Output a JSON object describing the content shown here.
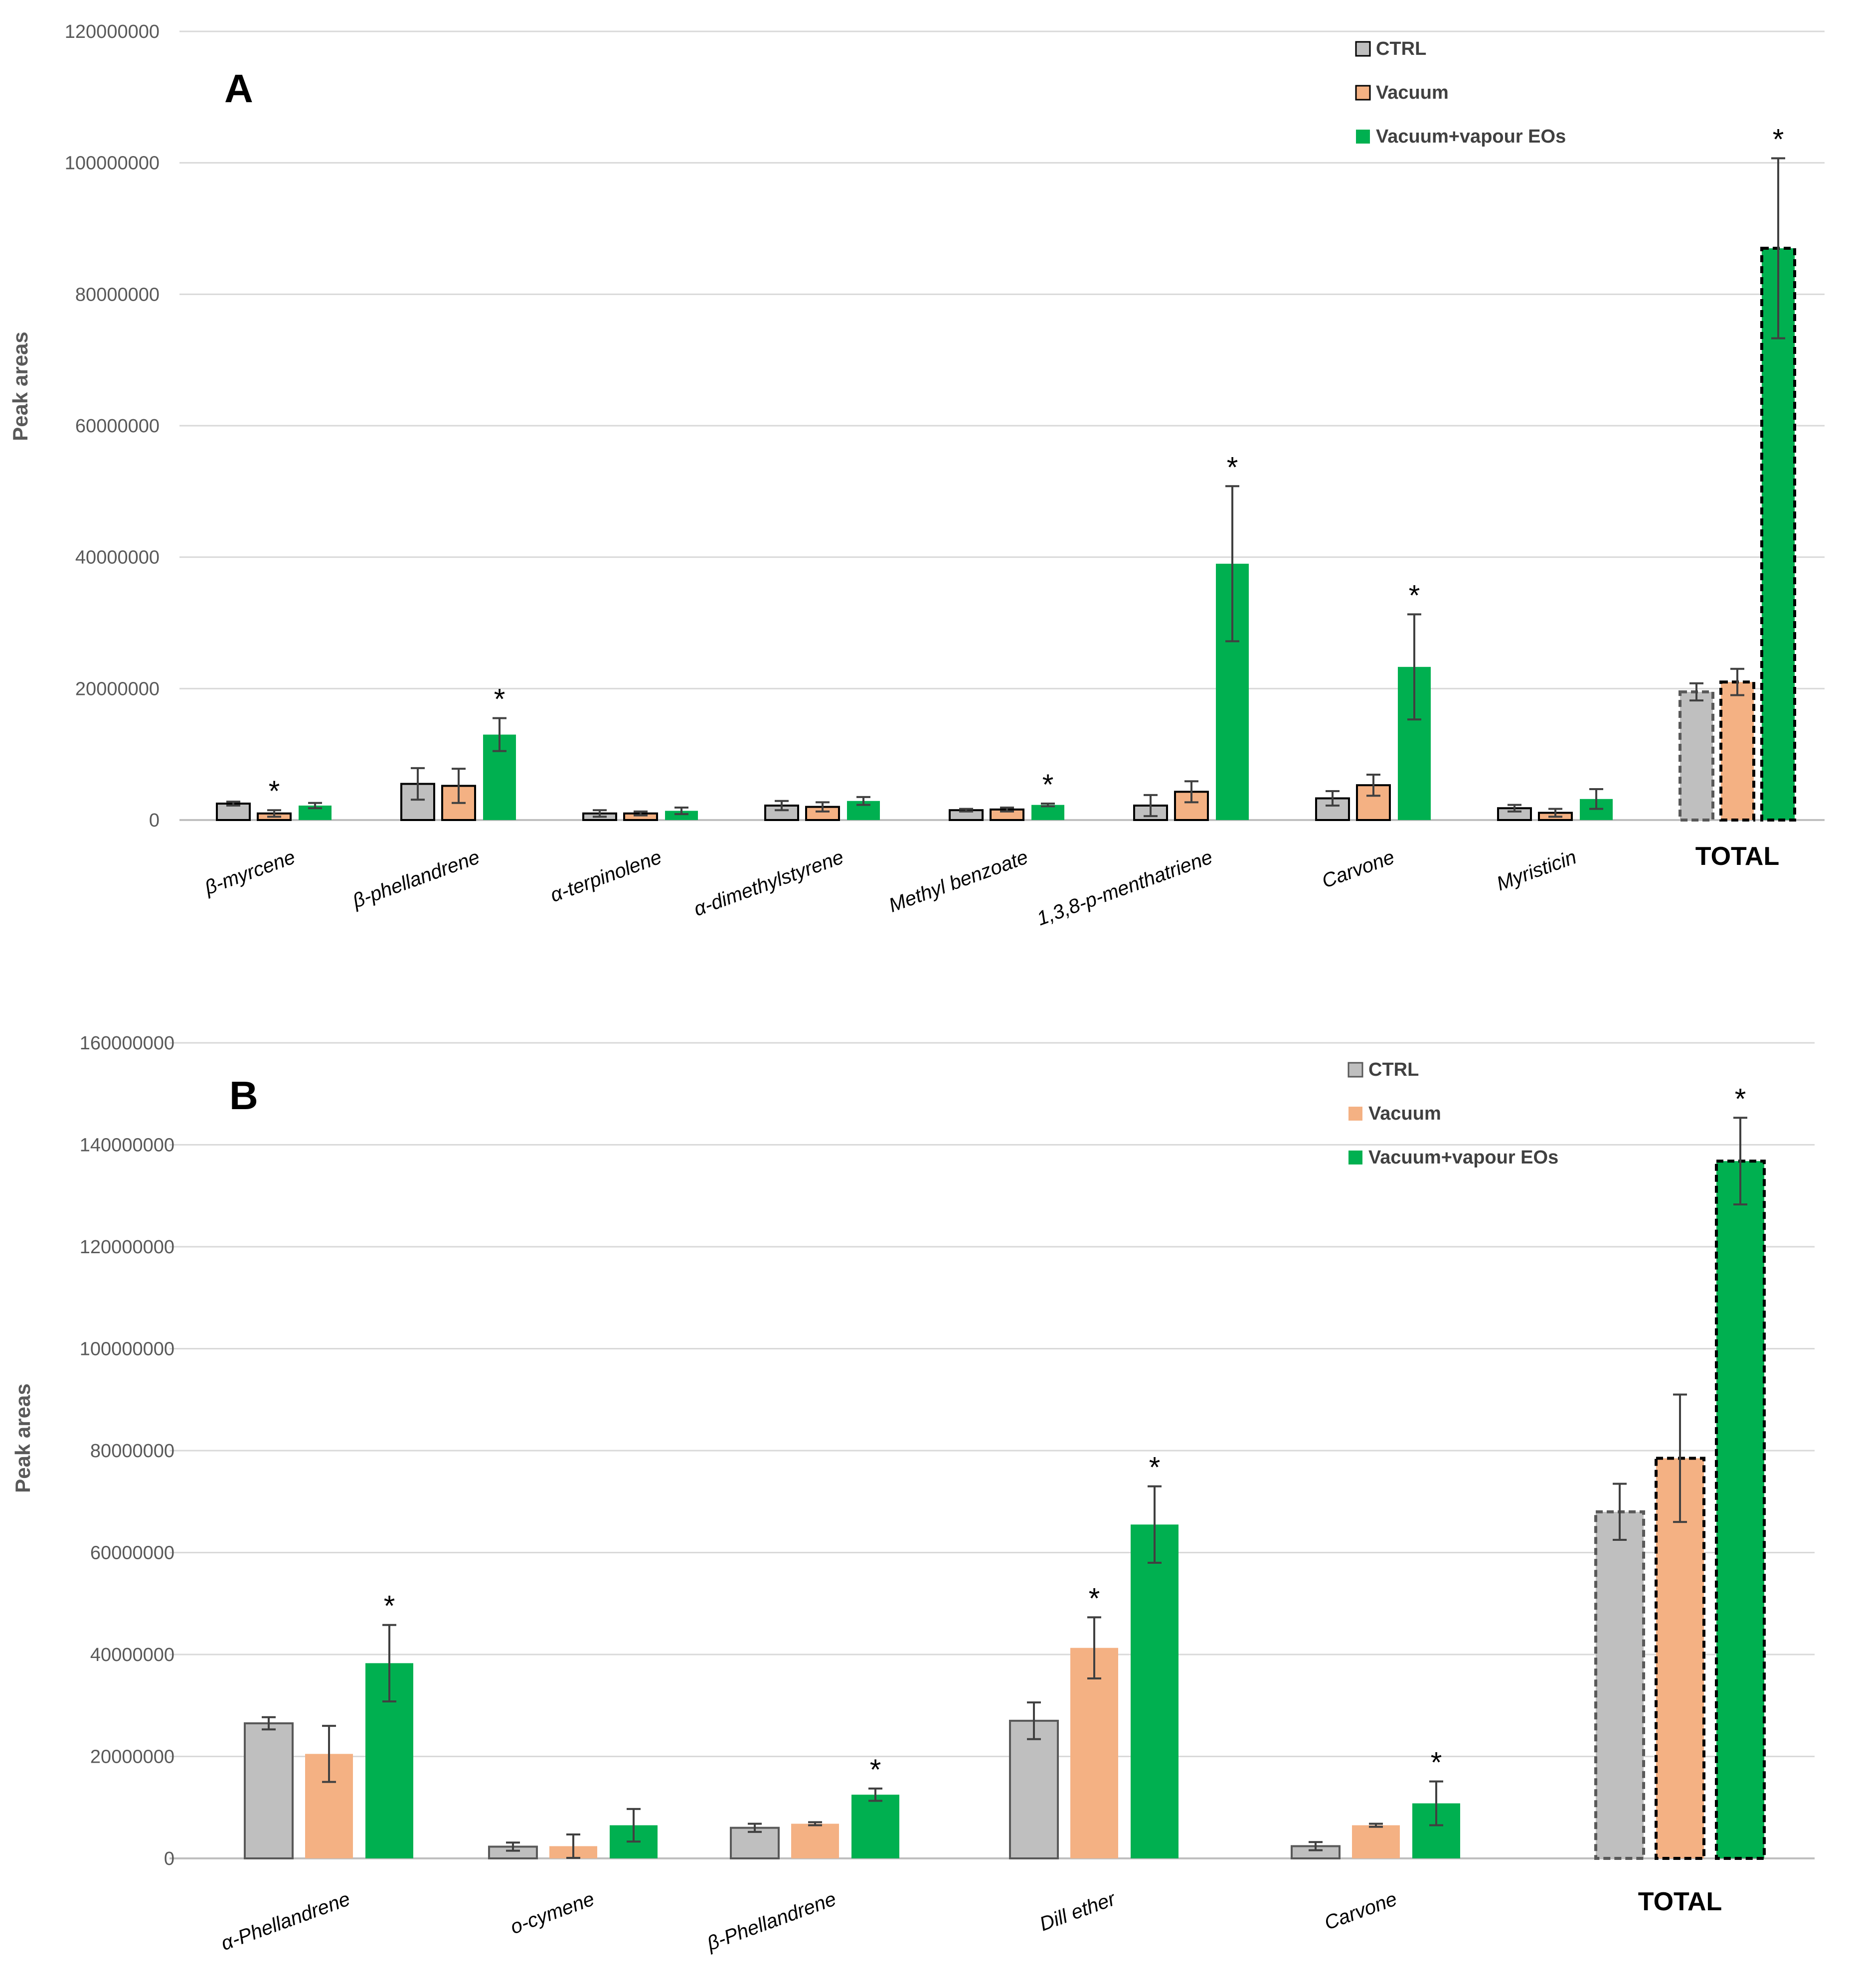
{
  "chart_data": [
    {
      "type": "bar",
      "panel_label": "A",
      "ylabel": "Peak areas",
      "ylim": [
        0,
        120000000
      ],
      "yticks": [
        "0",
        "20000000",
        "40000000",
        "60000000",
        "80000000",
        "100000000",
        "120000000"
      ],
      "categories": [
        "β-myrcene",
        "β-phellandrene",
        "α-terpinolene",
        "α-dimethylstyrene",
        "Methyl benzoate",
        "1,3,8-p-menthatriene",
        "Carvone",
        "Myristicin",
        "TOTAL"
      ],
      "series": [
        {
          "name": "CTRL",
          "color": "#bfbfbf",
          "values": [
            2500000,
            5500000,
            1000000,
            2200000,
            1500000,
            2200000,
            3300000,
            1800000,
            19500000
          ],
          "errors": [
            300000,
            2400000,
            500000,
            700000,
            200000,
            1600000,
            1100000,
            500000,
            1300000
          ]
        },
        {
          "name": "Vacuum",
          "color": "#f4b183",
          "values": [
            1000000,
            5200000,
            1000000,
            2000000,
            1600000,
            4300000,
            5300000,
            1100000,
            21000000
          ],
          "errors": [
            500000,
            2600000,
            300000,
            700000,
            300000,
            1600000,
            1600000,
            600000,
            2000000
          ]
        },
        {
          "name": "Vacuum+vapour EOs",
          "color": "#00b050",
          "values": [
            2200000,
            13000000,
            1400000,
            2900000,
            2300000,
            39000000,
            23300000,
            3200000,
            87000000
          ],
          "errors": [
            400000,
            2500000,
            500000,
            600000,
            200000,
            11800000,
            8000000,
            1500000,
            13700000
          ]
        }
      ],
      "significance": [
        {
          "category": "β-myrcene",
          "series": "Vacuum",
          "label": "*"
        },
        {
          "category": "β-phellandrene",
          "series": "Vacuum+vapour EOs",
          "label": "*"
        },
        {
          "category": "Methyl benzoate",
          "series": "Vacuum+vapour EOs",
          "label": "*"
        },
        {
          "category": "1,3,8-p-menthatriene",
          "series": "Vacuum+vapour EOs",
          "label": "*"
        },
        {
          "category": "Carvone",
          "series": "Vacuum+vapour EOs",
          "label": "*"
        },
        {
          "category": "TOTAL",
          "series": "Vacuum+vapour EOs",
          "label": "*"
        }
      ],
      "legend": [
        "CTRL",
        "Vacuum",
        "Vacuum+vapour EOs"
      ],
      "legend_position": "top-right",
      "grid": true
    },
    {
      "type": "bar",
      "panel_label": "B",
      "ylabel": "Peak areas",
      "ylim": [
        0,
        160000000
      ],
      "yticks": [
        "0",
        "20000000",
        "40000000",
        "60000000",
        "80000000",
        "100000000",
        "120000000",
        "140000000",
        "160000000"
      ],
      "categories": [
        "α-Phellandrene",
        "o-cymene",
        "β-Phellandrene",
        "Dill ether",
        "Carvone",
        "TOTAL"
      ],
      "series": [
        {
          "name": "CTRL",
          "color": "#bfbfbf",
          "values": [
            26500000,
            2300000,
            6000000,
            27000000,
            2400000,
            68000000
          ],
          "errors": [
            1200000,
            800000,
            800000,
            3600000,
            800000,
            5500000
          ]
        },
        {
          "name": "Vacuum",
          "color": "#f4b183",
          "values": [
            20500000,
            2400000,
            6800000,
            41300000,
            6500000,
            78500000
          ],
          "errors": [
            5500000,
            2300000,
            300000,
            6000000,
            300000,
            12500000
          ]
        },
        {
          "name": "Vacuum+vapour EOs",
          "color": "#00b050",
          "values": [
            38300000,
            6500000,
            12500000,
            65500000,
            10800000,
            136800000
          ],
          "errors": [
            7500000,
            3200000,
            1200000,
            7500000,
            4300000,
            8500000
          ]
        }
      ],
      "significance": [
        {
          "category": "α-Phellandrene",
          "series": "Vacuum+vapour EOs",
          "label": "*"
        },
        {
          "category": "β-Phellandrene",
          "series": "Vacuum+vapour EOs",
          "label": "*"
        },
        {
          "category": "Dill ether",
          "series": "Vacuum",
          "label": "*"
        },
        {
          "category": "Dill ether",
          "series": "Vacuum+vapour EOs",
          "label": "*"
        },
        {
          "category": "Carvone",
          "series": "Vacuum+vapour EOs",
          "label": "*"
        },
        {
          "category": "TOTAL",
          "series": "Vacuum+vapour EOs",
          "label": "*"
        }
      ],
      "legend": [
        "CTRL",
        "Vacuum",
        "Vacuum+vapour EOs"
      ],
      "legend_position": "top-right",
      "grid": true
    }
  ]
}
